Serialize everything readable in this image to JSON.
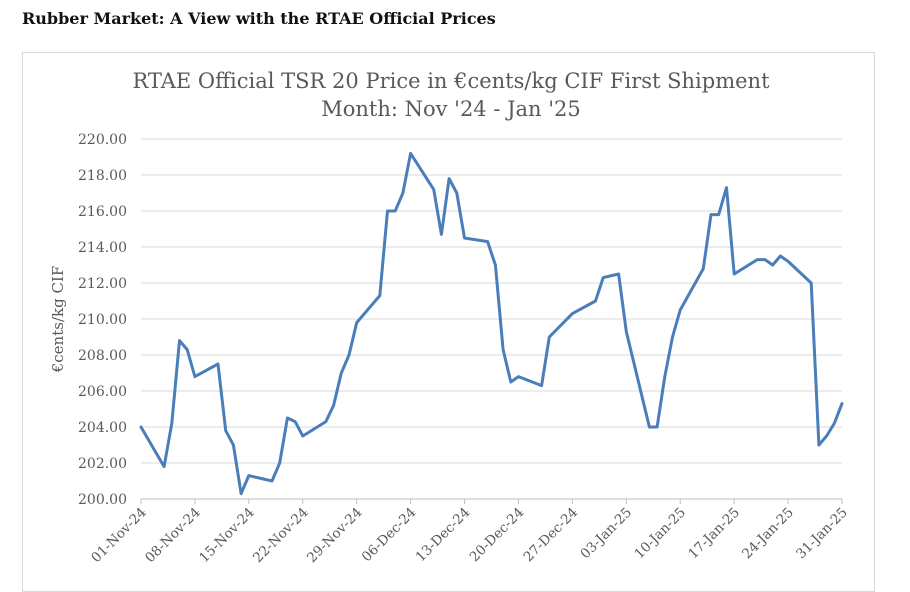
{
  "page": {
    "heading": "Rubber Market: A View with the RTAE Official Prices"
  },
  "chart_data": {
    "type": "line",
    "title_lines": [
      "RTAE Official TSR 20 Price in €cents/kg CIF First Shipment",
      "Month: Nov '24 - Jan '25"
    ],
    "xlabel": "",
    "ylabel": "€cents/kg CIF",
    "ylim": [
      200,
      220
    ],
    "y_ticks": [
      "200.00",
      "202.00",
      "204.00",
      "206.00",
      "208.00",
      "210.00",
      "212.00",
      "214.00",
      "216.00",
      "218.00",
      "220.00"
    ],
    "x_tick_labels": [
      "01-Nov-24",
      "08-Nov-24",
      "15-Nov-24",
      "22-Nov-24",
      "29-Nov-24",
      "06-Dec-24",
      "13-Dec-24",
      "20-Dec-24",
      "27-Dec-24",
      "03-Jan-25",
      "10-Jan-25",
      "17-Jan-25",
      "24-Jan-25",
      "31-Jan-25"
    ],
    "x_range": [
      "2024-11-01",
      "2025-01-31"
    ],
    "grid": true,
    "legend": "none",
    "line_color": "#4a7ebb",
    "series": [
      {
        "points": [
          [
            "2024-11-01",
            204.0
          ],
          [
            "2024-11-04",
            201.8
          ],
          [
            "2024-11-05",
            204.2
          ],
          [
            "2024-11-06",
            208.8
          ],
          [
            "2024-11-07",
            208.3
          ],
          [
            "2024-11-08",
            206.8
          ],
          [
            "2024-11-11",
            207.5
          ],
          [
            "2024-11-12",
            203.8
          ],
          [
            "2024-11-13",
            203.0
          ],
          [
            "2024-11-14",
            200.3
          ],
          [
            "2024-11-15",
            201.3
          ],
          [
            "2024-11-18",
            201.0
          ],
          [
            "2024-11-19",
            202.0
          ],
          [
            "2024-11-20",
            204.5
          ],
          [
            "2024-11-21",
            204.3
          ],
          [
            "2024-11-22",
            203.5
          ],
          [
            "2024-11-25",
            204.3
          ],
          [
            "2024-11-26",
            205.2
          ],
          [
            "2024-11-27",
            207.0
          ],
          [
            "2024-11-28",
            208.0
          ],
          [
            "2024-11-29",
            209.8
          ],
          [
            "2024-12-02",
            211.3
          ],
          [
            "2024-12-03",
            216.0
          ],
          [
            "2024-12-04",
            216.0
          ],
          [
            "2024-12-05",
            217.0
          ],
          [
            "2024-12-06",
            219.2
          ],
          [
            "2024-12-09",
            217.2
          ],
          [
            "2024-12-10",
            214.7
          ],
          [
            "2024-12-11",
            217.8
          ],
          [
            "2024-12-12",
            217.0
          ],
          [
            "2024-12-13",
            214.5
          ],
          [
            "2024-12-16",
            214.3
          ],
          [
            "2024-12-17",
            213.0
          ],
          [
            "2024-12-18",
            208.3
          ],
          [
            "2024-12-19",
            206.5
          ],
          [
            "2024-12-20",
            206.8
          ],
          [
            "2024-12-23",
            206.3
          ],
          [
            "2024-12-24",
            209.0
          ],
          [
            "2024-12-27",
            210.3
          ],
          [
            "2024-12-30",
            211.0
          ],
          [
            "2024-12-31",
            212.3
          ],
          [
            "2025-01-02",
            212.5
          ],
          [
            "2025-01-03",
            209.3
          ],
          [
            "2025-01-06",
            204.0
          ],
          [
            "2025-01-07",
            204.0
          ],
          [
            "2025-01-08",
            206.8
          ],
          [
            "2025-01-09",
            209.0
          ],
          [
            "2025-01-10",
            210.5
          ],
          [
            "2025-01-13",
            212.8
          ],
          [
            "2025-01-14",
            215.8
          ],
          [
            "2025-01-15",
            215.8
          ],
          [
            "2025-01-16",
            217.3
          ],
          [
            "2025-01-17",
            212.5
          ],
          [
            "2025-01-20",
            213.3
          ],
          [
            "2025-01-21",
            213.3
          ],
          [
            "2025-01-22",
            213.0
          ],
          [
            "2025-01-23",
            213.5
          ],
          [
            "2025-01-24",
            213.2
          ],
          [
            "2025-01-27",
            212.0
          ],
          [
            "2025-01-28",
            203.0
          ],
          [
            "2025-01-29",
            203.5
          ],
          [
            "2025-01-30",
            204.2
          ],
          [
            "2025-01-31",
            205.3
          ]
        ]
      }
    ]
  }
}
